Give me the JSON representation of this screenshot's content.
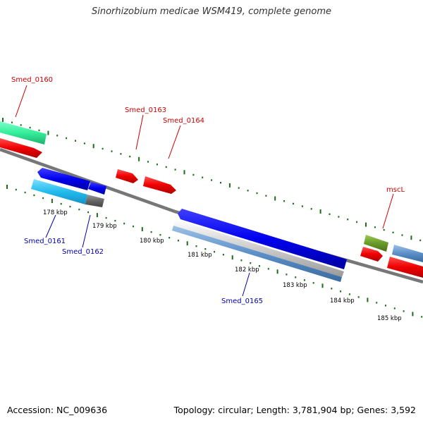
{
  "title": "Sinorhizobium medicae WSM419, complete genome",
  "footer": {
    "accession": "Accession: NC_009636",
    "summary": "Topology: circular; Length: 3,781,904 bp; Genes: 3,592"
  },
  "kbp_labels": [
    "178 kbp",
    "179 kbp",
    "180 kbp",
    "181 kbp",
    "182 kbp",
    "183 kbp",
    "184 kbp",
    "185 kbp"
  ],
  "gene_labels": {
    "smed_0160": "Smed_0160",
    "smed_0161": "Smed_0161",
    "smed_0162": "Smed_0162",
    "smed_0163": "Smed_0163",
    "smed_0164": "Smed_0164",
    "smed_0165": "Smed_0165",
    "mscl": "mscL"
  },
  "colors": {
    "forward_label": "#cc0000",
    "reverse_label": "#0000aa",
    "tick": "#1a6e1a",
    "backbone": "#777777"
  }
}
